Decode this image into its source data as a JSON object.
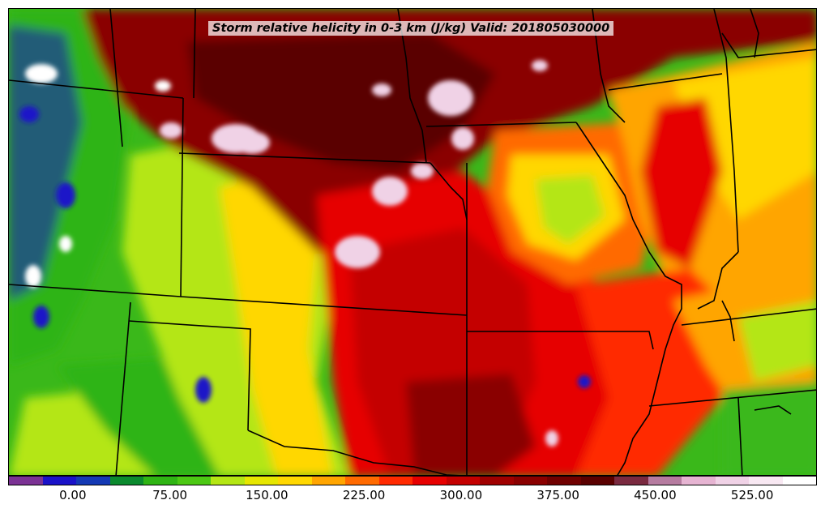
{
  "title": "Storm relative helicity in 0-3 km (J/kg) Valid: 201805030000",
  "colorbar": {
    "colors": [
      "#7b3294",
      "#1a12c8",
      "#1439b4",
      "#0b8a2e",
      "#2fb414",
      "#4cc814",
      "#b4e614",
      "#e6e600",
      "#ffd700",
      "#ffa500",
      "#ff6a00",
      "#ff2a00",
      "#e60000",
      "#c40000",
      "#a00000",
      "#8a0000",
      "#700000",
      "#5a0000",
      "#7a2a40",
      "#b67ca0",
      "#e6b4d2",
      "#f0d2e6",
      "#f8e8f2",
      "#ffffff"
    ],
    "ticks": [
      "0.00",
      "75.00",
      "150.00",
      "225.00",
      "300.00",
      "375.00",
      "450.00",
      "525.00"
    ],
    "tick_values": [
      0,
      75,
      150,
      225,
      300,
      375,
      450,
      525
    ],
    "min": -50,
    "max": 575
  },
  "map": {
    "field": "storm relative helicity 0-3 km",
    "units": "J/kg",
    "valid_time": "201805030000",
    "palette": {
      "high": "#8a0000",
      "very_high": "#5a0000",
      "extreme": "#f0d2e6",
      "moderate": "#ff2a00",
      "mid": "#ffa500",
      "low": "#b4e614",
      "very_low": "#2fb414",
      "negative": "#1a12c8",
      "land_border": "#000000"
    }
  }
}
